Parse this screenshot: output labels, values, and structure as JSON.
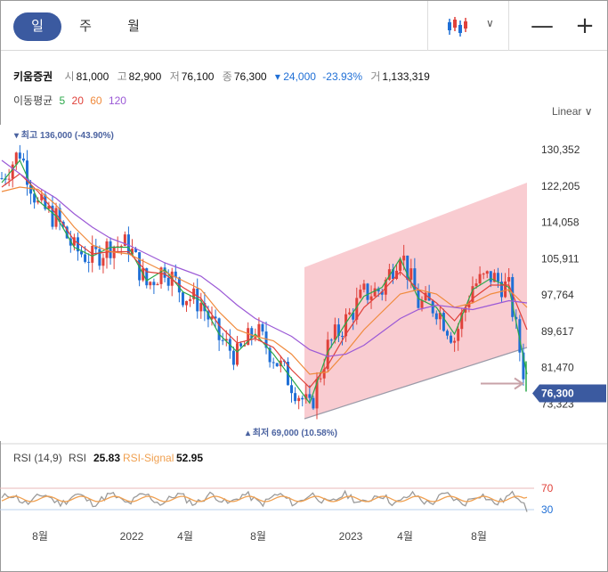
{
  "tabs": [
    {
      "label": "일",
      "active": true
    },
    {
      "label": "주",
      "active": false
    },
    {
      "label": "월",
      "active": false
    }
  ],
  "toolbar": {
    "chart_type_icon": "candlestick-icon",
    "dropdown_icon": "chevron-down-icon",
    "zoom_out": "—",
    "zoom_in": "+"
  },
  "quote": {
    "name": "키움증권",
    "open_label": "시",
    "open": "81,000",
    "high_label": "고",
    "high": "82,900",
    "low_label": "저",
    "low": "76,100",
    "close_label": "종",
    "close": "76,300",
    "change": "▾ 24,000",
    "change_pct": "-23.93%",
    "volume_label": "거",
    "volume": "1,133,319"
  },
  "ma": {
    "label": "이동평균",
    "p5": "5",
    "p20": "20",
    "p60": "60",
    "p120": "120"
  },
  "scale_label": "Linear",
  "price_chart": {
    "y_ticks": [
      "130,352",
      "122,205",
      "114,058",
      "105,911",
      "97,764",
      "89,617",
      "81,470",
      "73,323"
    ],
    "high_marker": "▾ 최고 136,000 (-43.90%)",
    "low_marker": "▴ 최저 69,000 (10.58%)",
    "current_price": "76,300"
  },
  "rsi": {
    "label": "RSI (14,9)",
    "rsi_label": "RSI",
    "rsi_value": "25.83",
    "signal_label": "RSI-Signal",
    "signal_value": "52.95",
    "level_high": "70",
    "level_low": "30"
  },
  "x_ticks": [
    "8월",
    "2022",
    "4월",
    "8월",
    "2023",
    "4월",
    "8월"
  ],
  "colors": {
    "accent": "#3b5aa0",
    "up": "#e0413a",
    "down": "#1f6fd6",
    "ma5": "#2ba84a",
    "ma20": "#e0413a",
    "ma60": "#f08a3c",
    "ma120": "#9b59d6",
    "channel": "#f7bfc6",
    "rsi": "#9a9a9a",
    "signal": "#f0a050"
  },
  "chart_data": {
    "type": "candlestick",
    "ylim": [
      70000,
      136000
    ],
    "x": [
      "2021-06",
      "2021-07",
      "2021-08",
      "2021-09",
      "2021-10",
      "2021-11",
      "2021-12",
      "2022-01",
      "2022-02",
      "2022-03",
      "2022-04",
      "2022-05",
      "2022-06",
      "2022-07",
      "2022-08",
      "2022-09",
      "2022-10",
      "2022-11",
      "2022-12",
      "2023-01",
      "2023-02",
      "2023-03",
      "2023-04",
      "2023-05",
      "2023-06",
      "2023-07",
      "2023-08",
      "2023-09",
      "2023-10",
      "2023-11"
    ],
    "series": [
      {
        "name": "종가",
        "values": [
          124000,
          130000,
          118000,
          115000,
          108000,
          106000,
          109000,
          109000,
          100000,
          104000,
          98000,
          96000,
          88000,
          84000,
          90000,
          84000,
          78000,
          72000,
          86000,
          92000,
          98000,
          99000,
          108000,
          96000,
          95000,
          88000,
          100000,
          102000,
          99000,
          76300
        ]
      },
      {
        "name": "5",
        "values": [
          123000,
          128000,
          119000,
          115500,
          108500,
          106500,
          108500,
          108500,
          101000,
          103500,
          98500,
          96500,
          89000,
          85000,
          89000,
          84500,
          79000,
          73500,
          85000,
          91500,
          97500,
          99500,
          106000,
          97000,
          95000,
          89000,
          99000,
          101500,
          99500,
          80000
        ]
      },
      {
        "name": "20",
        "values": [
          122000,
          125000,
          121000,
          116000,
          110000,
          107000,
          107500,
          107500,
          103000,
          102500,
          99500,
          97000,
          91000,
          87000,
          88000,
          86000,
          81000,
          77000,
          82000,
          89000,
          95000,
          98500,
          103000,
          99000,
          96000,
          92000,
          97000,
          100000,
          100000,
          90000
        ]
      },
      {
        "name": "60",
        "values": [
          121000,
          122000,
          121500,
          118000,
          113000,
          109000,
          107500,
          107000,
          105000,
          103000,
          101000,
          99000,
          94000,
          90000,
          88500,
          87500,
          84500,
          80000,
          80500,
          85000,
          90000,
          94000,
          98000,
          99000,
          98000,
          95000,
          96000,
          98000,
          99000,
          95000
        ]
      },
      {
        "name": "120",
        "values": [
          128000,
          125000,
          122000,
          119500,
          116000,
          113000,
          110500,
          109000,
          107000,
          105000,
          103500,
          102000,
          99000,
          95500,
          92500,
          90500,
          88500,
          85500,
          84000,
          84500,
          86500,
          89500,
          92500,
          94500,
          95500,
          95000,
          94500,
          95500,
          96500,
          96000
        ]
      }
    ],
    "annotations": [
      "최고 136,000 (-43.90%)",
      "최저 69,000 (10.58%)"
    ],
    "rsi": {
      "name": "RSI (14,9)",
      "ylim": [
        0,
        100
      ],
      "levels": [
        30,
        70
      ],
      "last_rsi": 25.83,
      "last_signal": 52.95
    }
  }
}
